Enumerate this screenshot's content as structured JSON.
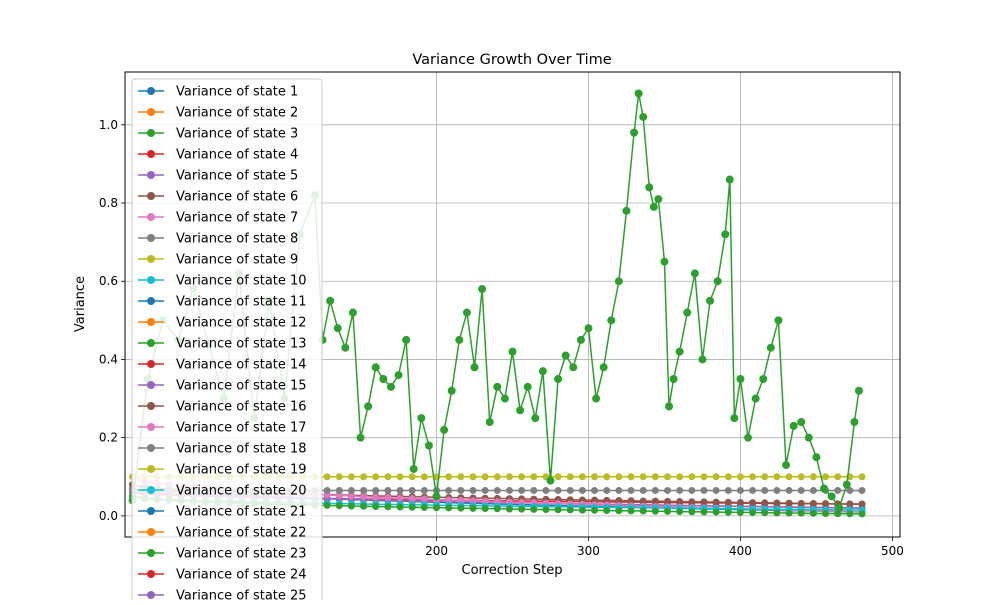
{
  "chart_data": {
    "type": "line",
    "title": "Variance Growth Over Time",
    "xlabel": "Correction Step",
    "ylabel": "Variance",
    "xlim": [
      -5,
      505
    ],
    "ylim": [
      -0.054,
      1.135
    ],
    "x_ticks": [
      200,
      300,
      400,
      500
    ],
    "x_tick_labels": [
      "200",
      "300",
      "400",
      "500"
    ],
    "y_ticks": [
      0.0,
      0.2,
      0.4,
      0.6,
      0.8,
      1.0
    ],
    "y_tick_labels": [
      "0.0",
      "0.2",
      "0.4",
      "0.6",
      "0.8",
      "1.0"
    ],
    "grid": true,
    "legend_position": "upper-left",
    "marker": "circle",
    "colors": [
      "#1f77b4",
      "#ff7f0e",
      "#2ca02c",
      "#d62728",
      "#9467bd",
      "#8c564b",
      "#e377c2",
      "#7f7f7f",
      "#bcbd22",
      "#17becf"
    ],
    "highlight_series": {
      "name": "Variance of state 23",
      "color": "#2ca02c",
      "x": [
        0,
        10,
        20,
        30,
        40,
        50,
        60,
        70,
        80,
        90,
        100,
        110,
        120,
        125,
        130,
        135,
        140,
        145,
        150,
        155,
        160,
        165,
        170,
        175,
        180,
        185,
        190,
        195,
        200,
        205,
        210,
        215,
        220,
        225,
        230,
        235,
        240,
        245,
        250,
        255,
        260,
        265,
        270,
        275,
        280,
        285,
        290,
        295,
        300,
        305,
        310,
        315,
        320,
        325,
        330,
        333,
        336,
        340,
        343,
        346,
        350,
        353,
        356,
        360,
        365,
        370,
        375,
        380,
        385,
        390,
        393,
        396,
        400,
        405,
        410,
        415,
        420,
        425,
        430,
        435,
        440,
        445,
        450,
        455,
        460,
        465,
        470,
        475,
        478
      ],
      "values": [
        0.04,
        0.35,
        0.5,
        0.45,
        0.58,
        0.44,
        0.3,
        0.62,
        0.25,
        0.55,
        0.3,
        0.72,
        0.82,
        0.45,
        0.55,
        0.48,
        0.43,
        0.52,
        0.2,
        0.28,
        0.38,
        0.35,
        0.33,
        0.36,
        0.45,
        0.12,
        0.25,
        0.18,
        0.05,
        0.22,
        0.32,
        0.45,
        0.52,
        0.38,
        0.58,
        0.24,
        0.33,
        0.3,
        0.42,
        0.27,
        0.33,
        0.25,
        0.37,
        0.09,
        0.35,
        0.41,
        0.38,
        0.45,
        0.48,
        0.3,
        0.38,
        0.5,
        0.6,
        0.78,
        0.98,
        1.08,
        1.02,
        0.84,
        0.79,
        0.81,
        0.65,
        0.28,
        0.35,
        0.42,
        0.52,
        0.62,
        0.4,
        0.55,
        0.6,
        0.72,
        0.86,
        0.25,
        0.35,
        0.2,
        0.3,
        0.35,
        0.43,
        0.5,
        0.13,
        0.23,
        0.24,
        0.2,
        0.15,
        0.07,
        0.05,
        0.02,
        0.08,
        0.24,
        0.32
      ]
    },
    "background_band_series": [
      {
        "color": "#1f77b4",
        "x_start": 0,
        "x_end": 480,
        "start_value": 0.08,
        "end_value": 0.01
      },
      {
        "color": "#ff7f0e",
        "x_start": 0,
        "x_end": 480,
        "start_value": 0.07,
        "end_value": 0.02
      },
      {
        "color": "#d62728",
        "x_start": 0,
        "x_end": 480,
        "start_value": 0.06,
        "end_value": 0.03
      },
      {
        "color": "#9467bd",
        "x_start": 0,
        "x_end": 480,
        "start_value": 0.07,
        "end_value": 0.02
      },
      {
        "color": "#8c564b",
        "x_start": 0,
        "x_end": 480,
        "start_value": 0.08,
        "end_value": 0.03
      },
      {
        "color": "#e377c2",
        "x_start": 0,
        "x_end": 480,
        "start_value": 0.1,
        "end_value": 0.01
      },
      {
        "color": "#7f7f7f",
        "x_start": 0,
        "x_end": 480,
        "start_value": 0.065,
        "end_value": 0.065
      },
      {
        "color": "#bcbd22",
        "x_start": 0,
        "x_end": 480,
        "start_value": 0.1,
        "end_value": 0.1
      },
      {
        "color": "#17becf",
        "x_start": 0,
        "x_end": 480,
        "start_value": 0.05,
        "end_value": 0.015
      },
      {
        "color": "#2ca02c",
        "x_start": 0,
        "x_end": 480,
        "start_value": 0.05,
        "end_value": 0.005
      }
    ],
    "legend_entries": [
      "Variance of state 1",
      "Variance of state 2",
      "Variance of state 3",
      "Variance of state 4",
      "Variance of state 5",
      "Variance of state 6",
      "Variance of state 7",
      "Variance of state 8",
      "Variance of state 9",
      "Variance of state 10",
      "Variance of state 11",
      "Variance of state 12",
      "Variance of state 13",
      "Variance of state 14",
      "Variance of state 15",
      "Variance of state 16",
      "Variance of state 17",
      "Variance of state 18",
      "Variance of state 19",
      "Variance of state 20",
      "Variance of state 21",
      "Variance of state 22",
      "Variance of state 23",
      "Variance of state 24",
      "Variance of state 25"
    ]
  }
}
